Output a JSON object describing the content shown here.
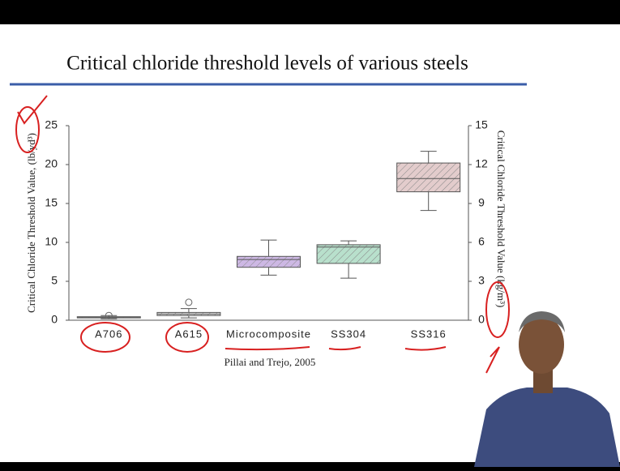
{
  "chart_data": {
    "type": "box",
    "title": "Critical chloride threshold levels of various steels",
    "ylabel": "Critical Chloride Threshold Value, (lb/yd³)",
    "y2label": "Critical Chloride Threshold Value (kg/m³)",
    "source": "Pillai and Trejo, 2005",
    "categories": [
      "A706",
      "A615",
      "Microcomposite",
      "SS304",
      "SS316"
    ],
    "boxes": [
      {
        "min": 0.2,
        "q1": 0.3,
        "median": 0.35,
        "q3": 0.45,
        "max": 0.6,
        "outliers": [
          0.6
        ],
        "color": "#e8e8e8"
      },
      {
        "min": 0.3,
        "q1": 0.6,
        "median": 0.8,
        "q3": 1.0,
        "max": 1.5,
        "outliers": [
          2.3
        ],
        "color": "#e8e8e8"
      },
      {
        "min": 5.8,
        "q1": 6.8,
        "median": 7.8,
        "q3": 8.2,
        "max": 10.3,
        "outliers": [],
        "color": "#cdb8e4"
      },
      {
        "min": 5.4,
        "q1": 7.3,
        "median": 9.4,
        "q3": 9.7,
        "max": 10.2,
        "outliers": [],
        "color": "#b8e0cc"
      },
      {
        "min": 14.1,
        "q1": 16.5,
        "median": 18.2,
        "q3": 20.2,
        "max": 21.7,
        "outliers": [],
        "color": "#e3cccc"
      }
    ],
    "ylim": [
      0,
      25
    ],
    "yticks": [
      0,
      5,
      10,
      15,
      20,
      25
    ],
    "y2lim": [
      0,
      15
    ],
    "y2ticks": [
      0,
      3,
      6,
      9,
      12,
      15
    ]
  }
}
